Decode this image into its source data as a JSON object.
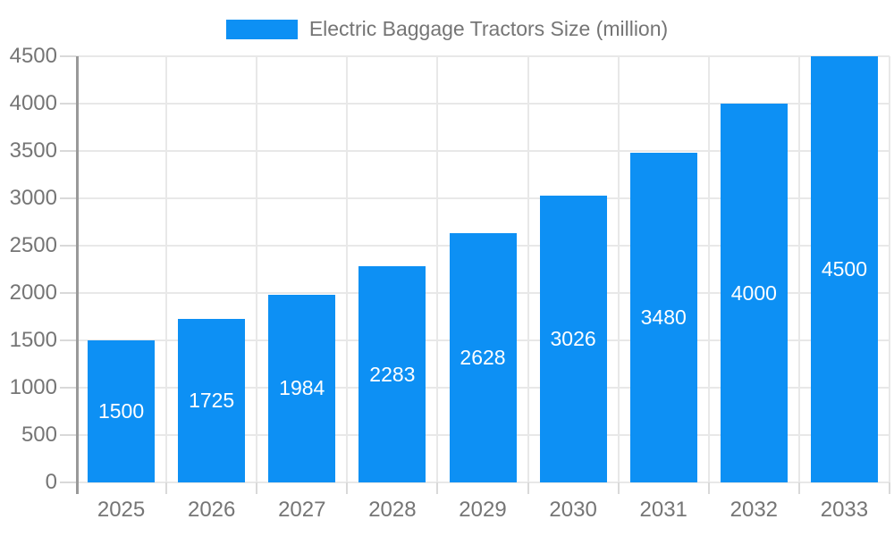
{
  "chart_data": {
    "type": "bar",
    "title": "Electric Baggage Tractors Size (million)",
    "legend": [
      "Electric Baggage Tractors Size (million)"
    ],
    "legend_position": "top",
    "categories": [
      "2025",
      "2026",
      "2027",
      "2028",
      "2029",
      "2030",
      "2031",
      "2032",
      "2033"
    ],
    "values": [
      1500,
      1725,
      1984,
      2283,
      2628,
      3026,
      3480,
      4000,
      4500
    ],
    "xlabel": "",
    "ylabel": "",
    "ylim": [
      0,
      4500
    ],
    "yticks": [
      0,
      500,
      1000,
      1500,
      2000,
      2500,
      3000,
      3500,
      4000,
      4500
    ],
    "grid": true,
    "value_labels": "inside-center"
  },
  "colors": {
    "bar": "#0d90f4",
    "bar_label": "#ffffff",
    "text": "#757575",
    "gridline": "#e8e8e8",
    "tick": "#d9d9d9",
    "axis_line": "#999999",
    "background": "#ffffff"
  }
}
